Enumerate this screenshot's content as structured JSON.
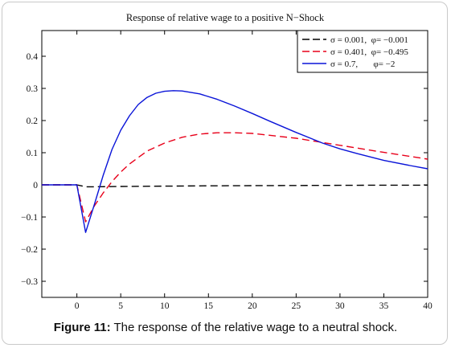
{
  "chart_data": {
    "type": "line",
    "title": "Response of relative wage to a positive N−Shock",
    "xlabel": "",
    "ylabel": "",
    "xlim": [
      -4,
      40
    ],
    "ylim": [
      -0.35,
      0.48
    ],
    "x_ticks": [
      0,
      5,
      10,
      15,
      20,
      25,
      30,
      35,
      40
    ],
    "x_tick_labels": [
      "0",
      "5",
      "10",
      "15",
      "20",
      "25",
      "30",
      "35",
      "40"
    ],
    "y_ticks": [
      -0.3,
      -0.2,
      -0.1,
      0,
      0.1,
      0.2,
      0.3,
      0.4
    ],
    "y_tick_labels": [
      "−0.3",
      "−0.2",
      "−0.1",
      "0",
      "0.1",
      "0.2",
      "0.3",
      "0.4"
    ],
    "grid": false,
    "legend_position": "top-right",
    "series": [
      {
        "name": "σ = 0.001,  φ= −0.001",
        "color": "#000000",
        "dash": "dashed",
        "points": [
          [
            -4,
            0
          ],
          [
            0,
            0
          ],
          [
            1,
            -0.006
          ],
          [
            2,
            -0.006
          ],
          [
            5,
            -0.005
          ],
          [
            10,
            -0.004
          ],
          [
            15,
            -0.003
          ],
          [
            20,
            -0.0025
          ],
          [
            25,
            -0.002
          ],
          [
            30,
            -0.0015
          ],
          [
            35,
            -0.001
          ],
          [
            40,
            -0.001
          ]
        ]
      },
      {
        "name": "σ = 0.401,  φ= −0.495",
        "color": "#e8001a",
        "dash": "dashed",
        "points": [
          [
            -4,
            0
          ],
          [
            0,
            0
          ],
          [
            1,
            -0.115
          ],
          [
            2,
            -0.065
          ],
          [
            3,
            -0.025
          ],
          [
            4,
            0.01
          ],
          [
            5,
            0.04
          ],
          [
            6,
            0.065
          ],
          [
            8,
            0.105
          ],
          [
            10,
            0.13
          ],
          [
            12,
            0.148
          ],
          [
            14,
            0.158
          ],
          [
            16,
            0.162
          ],
          [
            18,
            0.162
          ],
          [
            20,
            0.16
          ],
          [
            25,
            0.145
          ],
          [
            30,
            0.123
          ],
          [
            35,
            0.101
          ],
          [
            40,
            0.08
          ]
        ]
      },
      {
        "name": "σ = 0.7,       φ= −2",
        "color": "#0a14d8",
        "dash": "solid",
        "points": [
          [
            -4,
            0
          ],
          [
            0,
            0
          ],
          [
            1,
            -0.148
          ],
          [
            2,
            -0.06
          ],
          [
            3,
            0.03
          ],
          [
            4,
            0.11
          ],
          [
            5,
            0.17
          ],
          [
            6,
            0.215
          ],
          [
            7,
            0.25
          ],
          [
            8,
            0.272
          ],
          [
            9,
            0.285
          ],
          [
            10,
            0.291
          ],
          [
            11,
            0.293
          ],
          [
            12,
            0.292
          ],
          [
            14,
            0.283
          ],
          [
            16,
            0.266
          ],
          [
            18,
            0.245
          ],
          [
            20,
            0.222
          ],
          [
            22,
            0.198
          ],
          [
            25,
            0.163
          ],
          [
            28,
            0.13
          ],
          [
            30,
            0.112
          ],
          [
            32,
            0.097
          ],
          [
            35,
            0.076
          ],
          [
            38,
            0.06
          ],
          [
            40,
            0.05
          ]
        ]
      }
    ]
  },
  "caption": {
    "label": "Figure 11:",
    "text": " The response of the relative wage to a neutral shock."
  }
}
